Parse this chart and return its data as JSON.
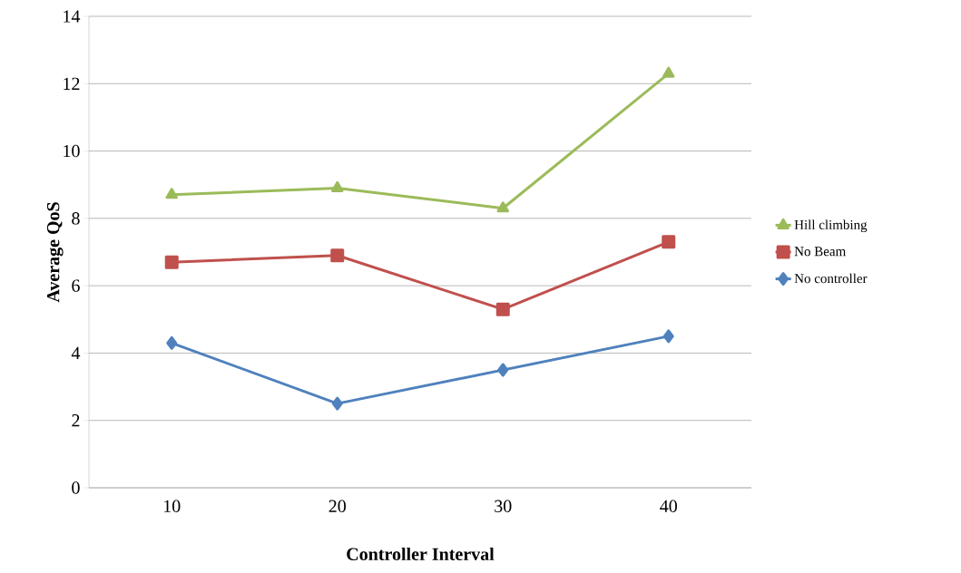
{
  "chart_data": {
    "type": "line",
    "xlabel": "Controller Interval",
    "ylabel": "Average QoS",
    "categories": [
      "10",
      "20",
      "30",
      "40"
    ],
    "series": [
      {
        "name": "Hill climbing",
        "color": "#9bbb59",
        "marker": "triangle",
        "values": [
          8.7,
          8.9,
          8.3,
          12.3
        ]
      },
      {
        "name": "No Beam",
        "color": "#c0504d",
        "marker": "square",
        "values": [
          6.7,
          6.9,
          5.3,
          7.3
        ]
      },
      {
        "name": "No controller",
        "color": "#4f81bd",
        "marker": "diamond",
        "values": [
          4.3,
          2.5,
          3.5,
          4.5
        ]
      }
    ],
    "ylim": [
      0,
      14
    ],
    "yticks": [
      0,
      2,
      4,
      6,
      8,
      10,
      12,
      14
    ],
    "grid": "y",
    "legend": "right",
    "line_style": "solid"
  }
}
